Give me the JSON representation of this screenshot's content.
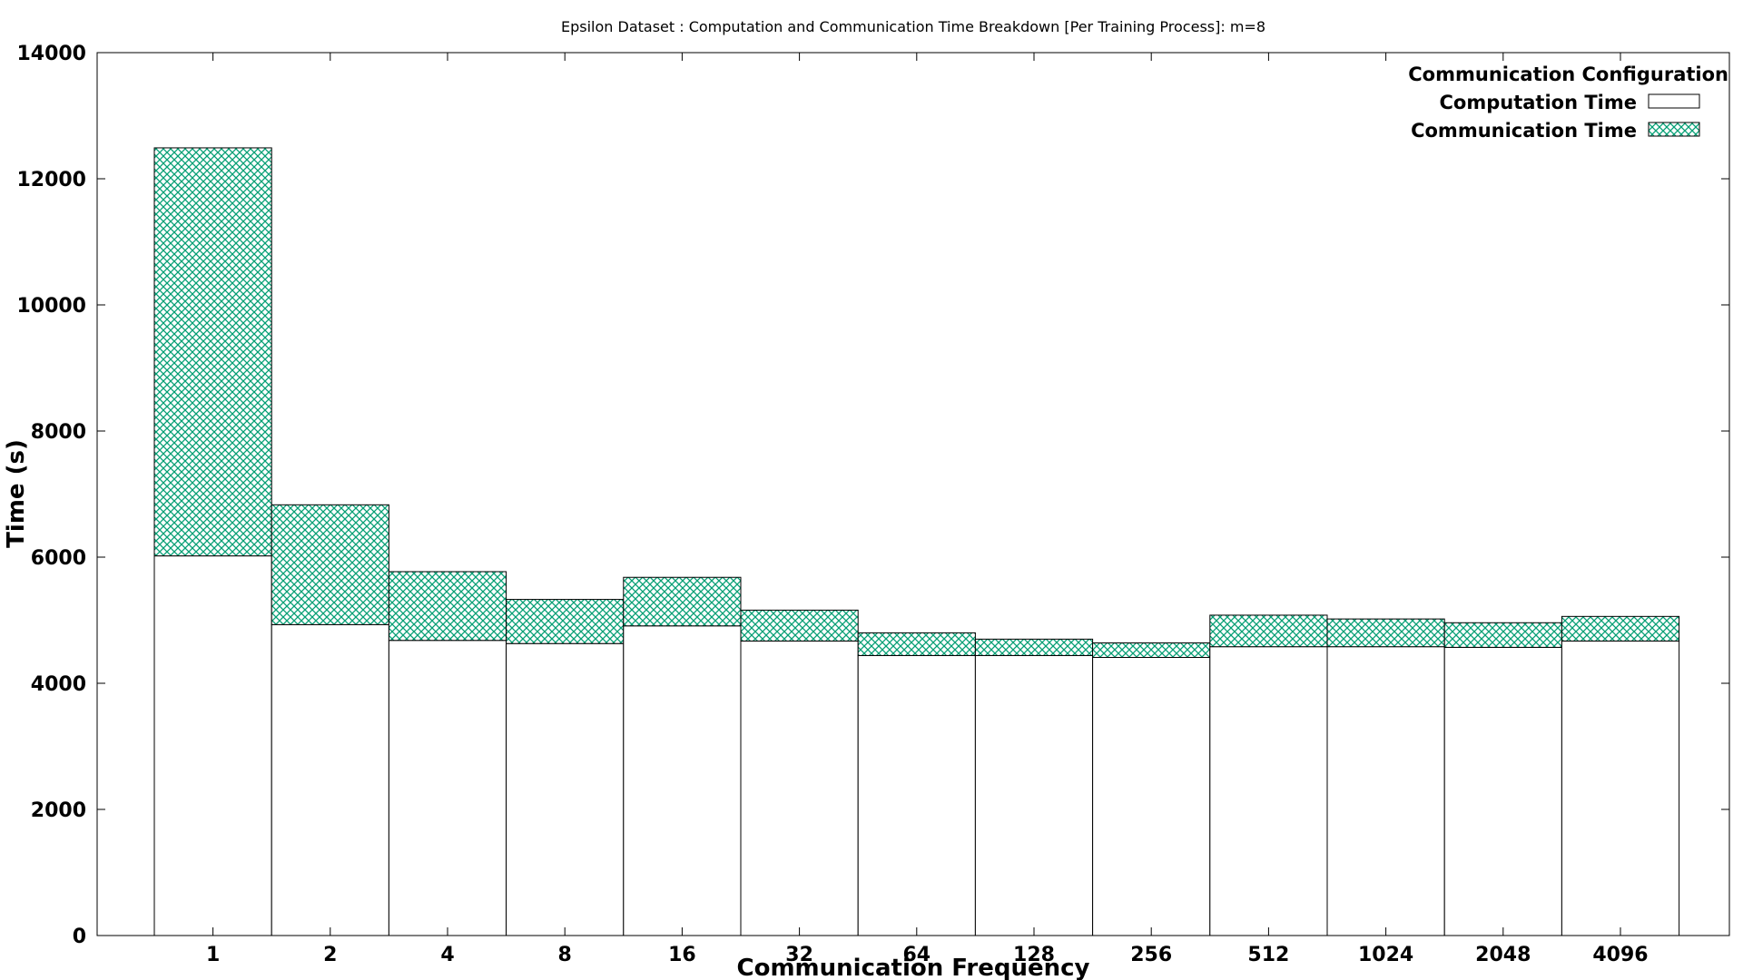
{
  "chart_data": {
    "type": "bar",
    "stacked": true,
    "title": "Epsilon Dataset : Computation and Communication Time Breakdown [Per Training Process]: m=8",
    "xlabel": "Communication Frequency",
    "ylabel": "Time (s)",
    "ylim": [
      0,
      14000
    ],
    "yticks": [
      0,
      2000,
      4000,
      6000,
      8000,
      10000,
      12000,
      14000
    ],
    "categories": [
      "1",
      "2",
      "4",
      "8",
      "16",
      "32",
      "64",
      "128",
      "256",
      "512",
      "1024",
      "2048",
      "4096"
    ],
    "series": [
      {
        "name": "Computation Time",
        "fill": "#ffffff",
        "values": [
          6020,
          4930,
          4680,
          4630,
          4910,
          4670,
          4440,
          4440,
          4410,
          4580,
          4580,
          4570,
          4670
        ]
      },
      {
        "name": "Communication Time",
        "fill": "#009e73",
        "pattern": "crosshatch",
        "values": [
          6470,
          1900,
          1090,
          700,
          770,
          490,
          360,
          260,
          230,
          500,
          440,
          390,
          390
        ]
      }
    ],
    "legend": {
      "title": "Communication Configuration",
      "position": "top-right"
    },
    "grid": false
  }
}
